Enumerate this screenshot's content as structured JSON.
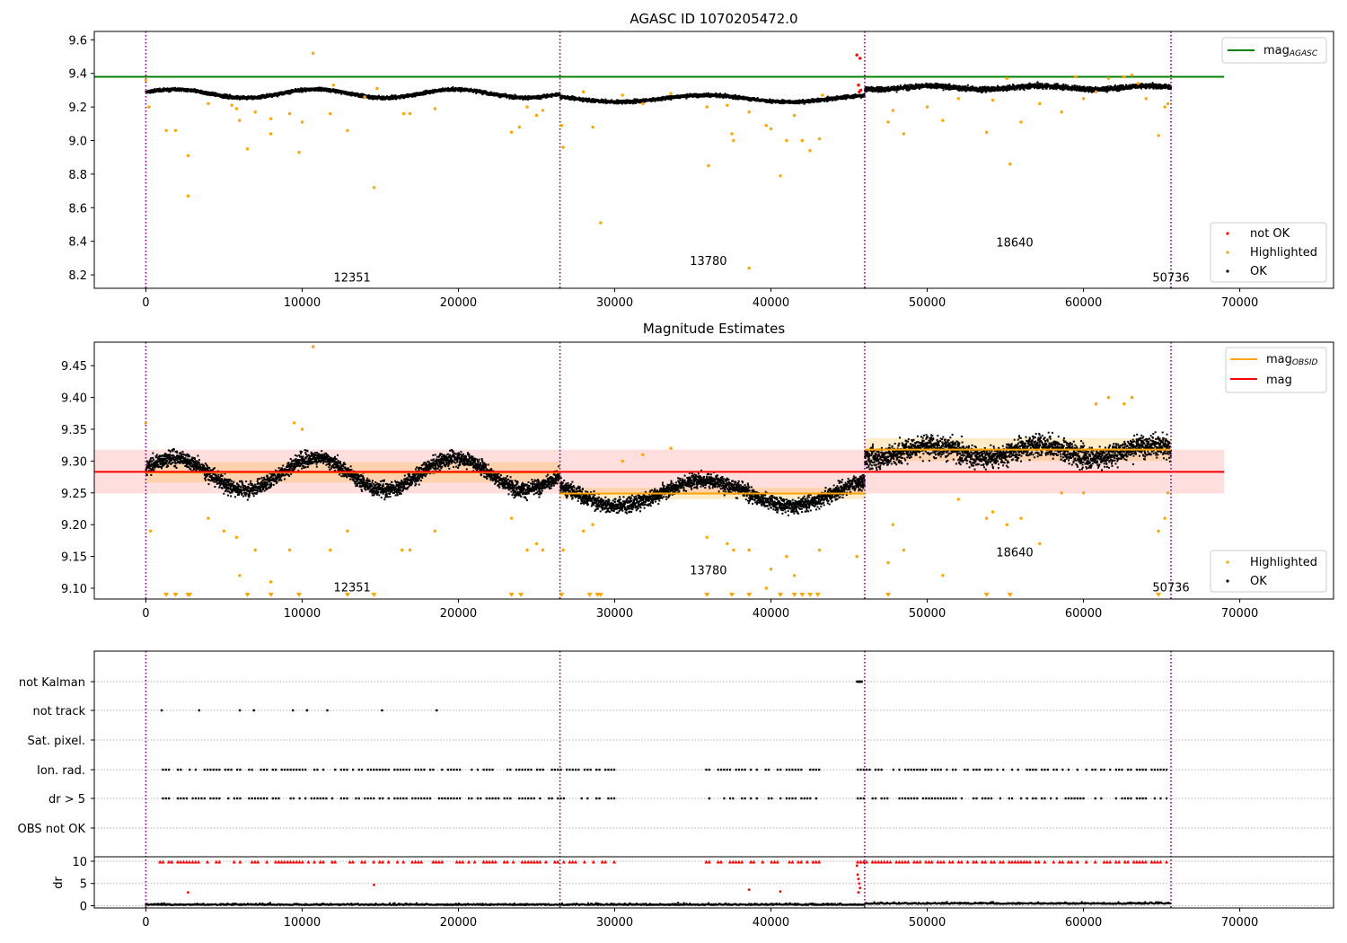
{
  "chart_data": [
    {
      "type": "scatter",
      "title": "AGASC ID 1070205472.0",
      "xlim": [
        -3300,
        76000
      ],
      "ylim": [
        8.12,
        9.65
      ],
      "xticks": [
        0,
        10000,
        20000,
        30000,
        40000,
        50000,
        60000,
        70000
      ],
      "yticks": [
        8.2,
        8.4,
        8.6,
        8.8,
        9.0,
        9.2,
        9.4,
        9.6
      ],
      "legend_top": {
        "placement": "top-right",
        "entries": [
          {
            "label": "mag",
            "subscript": "AGASC",
            "color": "#008000"
          }
        ]
      },
      "legend_bottom": {
        "placement": "lower-right",
        "entries": [
          {
            "label": "not OK",
            "color": "#ff0000"
          },
          {
            "label": "Highlighted",
            "color": "#ffa500"
          },
          {
            "label": "OK",
            "color": "#000000"
          }
        ]
      },
      "mag_agasc": {
        "value": 9.38,
        "x_range": [
          -3300,
          69000
        ]
      },
      "observation_boundaries": [
        0,
        26500,
        46000,
        65600
      ],
      "obsid_labels": [
        {
          "text": "12351",
          "x": 13200,
          "y": 8.16
        },
        {
          "text": "13780",
          "x": 36000,
          "y": 8.26
        },
        {
          "text": "18640",
          "x": 55600,
          "y": 8.37
        },
        {
          "text": "50736",
          "x": 65600,
          "y": 8.16
        }
      ],
      "segments": [
        {
          "x": [
            0,
            26500
          ],
          "base": 9.28,
          "amp": 0.025,
          "period": 9000,
          "phase": 0.3,
          "spread": 0.02
        },
        {
          "x": [
            26500,
            46000
          ],
          "base": 9.25,
          "amp": 0.02,
          "period": 11000,
          "phase": 0.0,
          "spread": 0.02
        },
        {
          "x": [
            46000,
            65600
          ],
          "base": 9.315,
          "amp": 0.01,
          "period": 7000,
          "phase": 0.5,
          "spread": 0.03
        }
      ],
      "highlighted": [
        [
          0,
          9.36
        ],
        [
          200,
          9.2
        ],
        [
          1300,
          9.06
        ],
        [
          1900,
          9.06
        ],
        [
          2700,
          8.91
        ],
        [
          2700,
          8.67
        ],
        [
          4000,
          9.22
        ],
        [
          5500,
          9.21
        ],
        [
          5800,
          9.19
        ],
        [
          6000,
          9.12
        ],
        [
          6500,
          8.95
        ],
        [
          7000,
          9.17
        ],
        [
          8000,
          9.13
        ],
        [
          8000,
          9.04
        ],
        [
          9200,
          9.16
        ],
        [
          9800,
          8.93
        ],
        [
          10000,
          9.11
        ],
        [
          10700,
          9.52
        ],
        [
          11800,
          9.16
        ],
        [
          12000,
          9.33
        ],
        [
          12900,
          9.06
        ],
        [
          14000,
          9.26
        ],
        [
          14600,
          8.72
        ],
        [
          14800,
          9.31
        ],
        [
          16500,
          9.16
        ],
        [
          16900,
          9.16
        ],
        [
          18500,
          9.19
        ],
        [
          23400,
          9.05
        ],
        [
          23900,
          9.08
        ],
        [
          24400,
          9.2
        ],
        [
          25000,
          9.15
        ],
        [
          25400,
          9.18
        ],
        [
          26600,
          9.09
        ],
        [
          26700,
          8.96
        ],
        [
          28000,
          9.29
        ],
        [
          28600,
          9.08
        ],
        [
          29100,
          8.51
        ],
        [
          30500,
          9.27
        ],
        [
          31800,
          9.22
        ],
        [
          33600,
          9.28
        ],
        [
          35900,
          9.2
        ],
        [
          36000,
          8.85
        ],
        [
          37200,
          9.21
        ],
        [
          37500,
          9.04
        ],
        [
          37600,
          9.0
        ],
        [
          38600,
          9.17
        ],
        [
          38600,
          8.24
        ],
        [
          39700,
          9.09
        ],
        [
          40000,
          9.07
        ],
        [
          40600,
          8.79
        ],
        [
          41000,
          9.0
        ],
        [
          41500,
          9.15
        ],
        [
          42000,
          9.0
        ],
        [
          42500,
          8.94
        ],
        [
          43100,
          9.01
        ],
        [
          43300,
          9.27
        ],
        [
          47500,
          9.11
        ],
        [
          47800,
          9.18
        ],
        [
          48500,
          9.04
        ],
        [
          50000,
          9.2
        ],
        [
          51000,
          9.12
        ],
        [
          52000,
          9.25
        ],
        [
          53800,
          9.05
        ],
        [
          54200,
          9.24
        ],
        [
          55300,
          8.86
        ],
        [
          56000,
          9.11
        ],
        [
          57200,
          9.22
        ],
        [
          58600,
          9.17
        ],
        [
          60000,
          9.25
        ],
        [
          60800,
          9.29
        ],
        [
          61600,
          9.37
        ],
        [
          62600,
          9.38
        ],
        [
          64000,
          9.25
        ],
        [
          64800,
          9.03
        ],
        [
          65200,
          9.2
        ],
        [
          65400,
          9.22
        ],
        [
          63100,
          9.39
        ],
        [
          63500,
          9.34
        ],
        [
          59500,
          9.38
        ],
        [
          55100,
          9.37
        ]
      ],
      "not_ok": [
        [
          45500,
          9.51
        ],
        [
          45700,
          9.49
        ],
        [
          45600,
          9.33
        ],
        [
          45650,
          9.29
        ],
        [
          45750,
          9.3
        ]
      ]
    },
    {
      "type": "scatter",
      "title": "Magnitude Estimates",
      "xlim": [
        -3300,
        76000
      ],
      "ylim": [
        9.083,
        9.487
      ],
      "xticks": [
        0,
        10000,
        20000,
        30000,
        40000,
        50000,
        60000,
        70000
      ],
      "yticks": [
        9.1,
        9.15,
        9.2,
        9.25,
        9.3,
        9.35,
        9.4,
        9.45
      ],
      "legend_top": {
        "placement": "top-right",
        "entries": [
          {
            "label": "mag",
            "subscript": "OBSID",
            "color": "#ffa500"
          },
          {
            "label": "mag",
            "color": "#ff0000"
          }
        ]
      },
      "legend_bottom": {
        "placement": "lower-right",
        "entries": [
          {
            "label": "Highlighted",
            "color": "#ffa500"
          },
          {
            "label": "OK",
            "color": "#000000"
          }
        ]
      },
      "mag": {
        "value": 9.283,
        "band": [
          9.249,
          9.318
        ],
        "x_range": [
          -3300,
          69000
        ]
      },
      "mag_obsid": [
        {
          "x": [
            0,
            26500
          ],
          "value": 9.282,
          "band": [
            9.266,
            9.298
          ]
        },
        {
          "x": [
            26500,
            46000
          ],
          "value": 9.249,
          "band": [
            9.24,
            9.258
          ]
        },
        {
          "x": [
            46000,
            65600
          ],
          "value": 9.318,
          "band": [
            9.3,
            9.336
          ]
        }
      ],
      "observation_boundaries": [
        0,
        26500,
        46000,
        65600
      ],
      "obsid_labels": [
        {
          "text": "12351",
          "x": 13200,
          "y": 9.095
        },
        {
          "text": "13780",
          "x": 36000,
          "y": 9.122
        },
        {
          "text": "18640",
          "x": 55600,
          "y": 9.15
        },
        {
          "text": "50736",
          "x": 65600,
          "y": 9.095
        }
      ],
      "segments": [
        {
          "x": [
            0,
            26500
          ],
          "base": 9.28,
          "amp": 0.025,
          "period": 9000,
          "phase": 0.3,
          "spread": 0.025
        },
        {
          "x": [
            26500,
            46000
          ],
          "base": 9.25,
          "amp": 0.02,
          "period": 11000,
          "phase": 0.0,
          "spread": 0.025
        },
        {
          "x": [
            46000,
            65600
          ],
          "base": 9.315,
          "amp": 0.01,
          "period": 7000,
          "phase": 0.5,
          "spread": 0.035
        }
      ],
      "highlighted": [
        [
          0,
          9.36
        ],
        [
          300,
          9.19
        ],
        [
          4000,
          9.21
        ],
        [
          5000,
          9.19
        ],
        [
          5800,
          9.18
        ],
        [
          6000,
          9.12
        ],
        [
          7000,
          9.16
        ],
        [
          8000,
          9.11
        ],
        [
          9200,
          9.16
        ],
        [
          9500,
          9.36
        ],
        [
          10000,
          9.35
        ],
        [
          10700,
          9.48
        ],
        [
          11800,
          9.16
        ],
        [
          12900,
          9.19
        ],
        [
          16400,
          9.16
        ],
        [
          16900,
          9.16
        ],
        [
          18500,
          9.19
        ],
        [
          23400,
          9.21
        ],
        [
          24400,
          9.16
        ],
        [
          25000,
          9.17
        ],
        [
          25400,
          9.16
        ],
        [
          26700,
          9.16
        ],
        [
          28000,
          9.19
        ],
        [
          28600,
          9.2
        ],
        [
          30500,
          9.3
        ],
        [
          31800,
          9.31
        ],
        [
          33600,
          9.32
        ],
        [
          35900,
          9.18
        ],
        [
          37200,
          9.17
        ],
        [
          37600,
          9.16
        ],
        [
          38600,
          9.16
        ],
        [
          39700,
          9.1
        ],
        [
          40000,
          9.13
        ],
        [
          41000,
          9.15
        ],
        [
          41500,
          9.12
        ],
        [
          43100,
          9.16
        ],
        [
          45500,
          9.15
        ],
        [
          47500,
          9.14
        ],
        [
          47800,
          9.2
        ],
        [
          48500,
          9.16
        ],
        [
          51000,
          9.12
        ],
        [
          52000,
          9.24
        ],
        [
          53800,
          9.21
        ],
        [
          54200,
          9.22
        ],
        [
          55100,
          9.2
        ],
        [
          56000,
          9.21
        ],
        [
          57200,
          9.17
        ],
        [
          58600,
          9.25
        ],
        [
          60000,
          9.25
        ],
        [
          60800,
          9.39
        ],
        [
          61600,
          9.4
        ],
        [
          62600,
          9.39
        ],
        [
          63100,
          9.4
        ],
        [
          64800,
          9.19
        ],
        [
          65200,
          9.21
        ],
        [
          65400,
          9.25
        ]
      ],
      "below_range_x": [
        1300,
        1900,
        2700,
        2800,
        6500,
        8000,
        9800,
        12900,
        14600,
        23400,
        24000,
        26600,
        28400,
        28900,
        29100,
        35900,
        37500,
        38600,
        40600,
        41500,
        42000,
        42500,
        43000,
        47500,
        53800,
        55300,
        64800
      ]
    },
    {
      "type": "scatter",
      "title": "",
      "xlim": [
        -3300,
        76000
      ],
      "xticks": [
        0,
        10000,
        20000,
        30000,
        40000,
        50000,
        60000,
        70000
      ],
      "flag_rows": [
        "not Kalman",
        "not track",
        "Sat. pixel.",
        "Ion. rad.",
        "dr > 5",
        "OBS not OK"
      ],
      "flags": {
        "not Kalman": [
          45500,
          45550,
          45600,
          45650,
          45700,
          45750,
          45800
        ],
        "not track": [
          1000,
          3400,
          6000,
          6900,
          9400,
          10300,
          11600,
          15100,
          18600
        ],
        "Ion. rad.": "dense-except-gap",
        "dr > 5": "dense-except-gap"
      },
      "dr_panel": {
        "ylabel": "dr",
        "ylim": [
          -0.5,
          11
        ],
        "yticks": [
          0,
          5,
          10
        ]
      },
      "observation_boundaries": [
        0,
        26500,
        46000,
        65600
      ]
    }
  ]
}
